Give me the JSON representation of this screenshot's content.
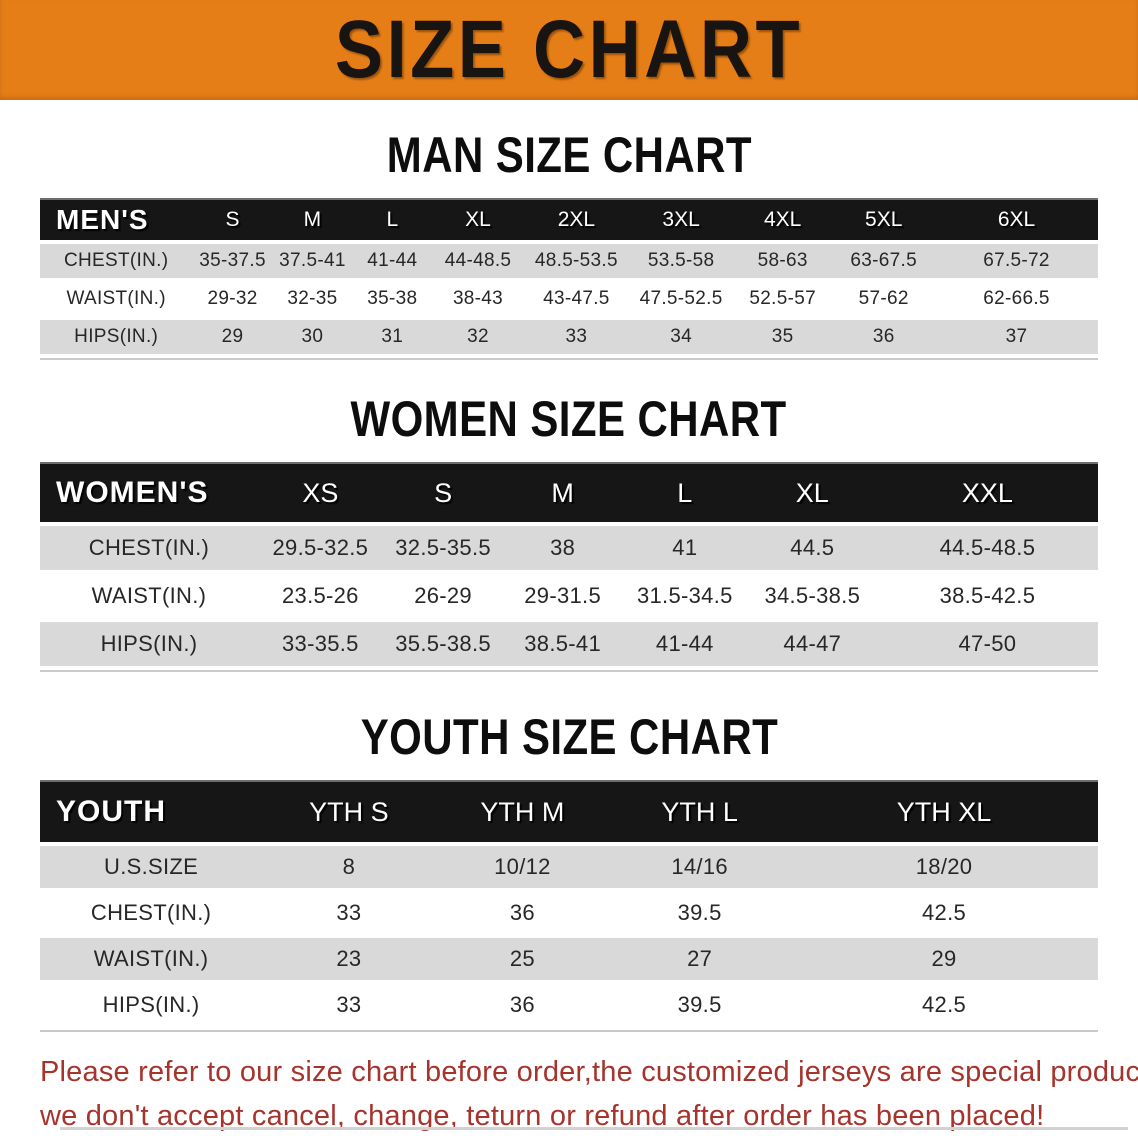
{
  "banner": {
    "title": "SIZE CHART"
  },
  "colors": {
    "banner_bg": "#E67E17",
    "header_bg": "#161616",
    "row_gray": "#D9D9D9",
    "disclaimer_red": "#A6332C"
  },
  "sections": [
    {
      "title": "MAN SIZE CHART",
      "table": {
        "header_label": "MEN'S",
        "columns": [
          "S",
          "M",
          "L",
          "XL",
          "2XL",
          "3XL",
          "4XL",
          "5XL",
          "6XL"
        ],
        "rows": [
          {
            "label": "CHEST(IN.)",
            "values": [
              "35-37.5",
              "37.5-41",
              "41-44",
              "44-48.5",
              "48.5-53.5",
              "53.5-58",
              "58-63",
              "63-67.5",
              "67.5-72"
            ]
          },
          {
            "label": "WAIST(IN.)",
            "values": [
              "29-32",
              "32-35",
              "35-38",
              "38-43",
              "43-47.5",
              "47.5-52.5",
              "52.5-57",
              "57-62",
              "62-66.5"
            ]
          },
          {
            "label": "HIPS(IN.)",
            "values": [
              "29",
              "30",
              "31",
              "32",
              "33",
              "34",
              "35",
              "36",
              "37"
            ]
          }
        ]
      }
    },
    {
      "title": "WOMEN SIZE CHART",
      "table": {
        "header_label": "WOMEN'S",
        "columns": [
          "XS",
          "S",
          "M",
          "L",
          "XL",
          "XXL"
        ],
        "rows": [
          {
            "label": "CHEST(IN.)",
            "values": [
              "29.5-32.5",
              "32.5-35.5",
              "38",
              "41",
              "44.5",
              "44.5-48.5"
            ]
          },
          {
            "label": "WAIST(IN.)",
            "values": [
              "23.5-26",
              "26-29",
              "29-31.5",
              "31.5-34.5",
              "34.5-38.5",
              "38.5-42.5"
            ]
          },
          {
            "label": "HIPS(IN.)",
            "values": [
              "33-35.5",
              "35.5-38.5",
              "38.5-41",
              "41-44",
              "44-47",
              "47-50"
            ]
          }
        ]
      }
    },
    {
      "title": "YOUTH SIZE CHART",
      "table": {
        "header_label": "YOUTH",
        "columns": [
          "YTH S",
          "YTH M",
          "YTH L",
          "YTH XL"
        ],
        "rows": [
          {
            "label": "U.S.SIZE",
            "values": [
              "8",
              "10/12",
              "14/16",
              "18/20"
            ]
          },
          {
            "label": "CHEST(IN.)",
            "values": [
              "33",
              "36",
              "39.5",
              "42.5"
            ]
          },
          {
            "label": "WAIST(IN.)",
            "values": [
              "23",
              "25",
              "27",
              "29"
            ]
          },
          {
            "label": "HIPS(IN.)",
            "values": [
              "33",
              "36",
              "39.5",
              "42.5"
            ]
          }
        ]
      }
    }
  ],
  "disclaimer": {
    "line1": "Please refer to our size chart before order,the customized jerseys are special products,",
    "line2": "we don't accept cancel, change, teturn or refund after order has been placed!"
  }
}
